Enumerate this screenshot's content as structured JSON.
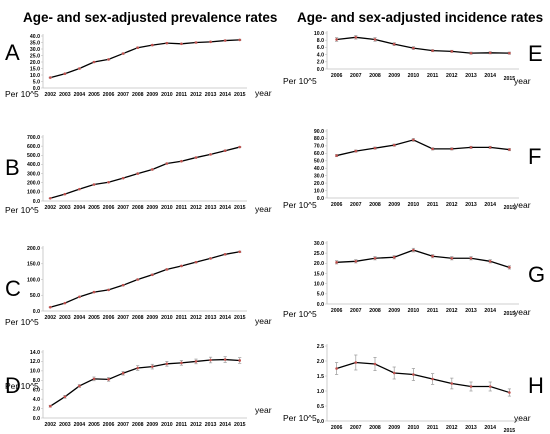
{
  "titles": {
    "left": "Age- and sex-adjusted prevalence rates",
    "right": "Age- and sex-adjusted incidence rates"
  },
  "unit_label": "Per 10^5",
  "x_axis_label": "year",
  "colors": {
    "line": "#000000",
    "marker": "#c0504d",
    "error": "#999999",
    "axis": "#bfbfbf"
  },
  "chart_data": [
    {
      "panel": "A",
      "type": "line",
      "x": [
        "2002",
        "2003",
        "2004",
        "2005",
        "2006",
        "2007",
        "2008",
        "2009",
        "2010",
        "2011",
        "2012",
        "2013",
        "2014",
        "2015"
      ],
      "values": [
        8.0,
        11.0,
        15.0,
        20.0,
        22.0,
        26.5,
        31.0,
        33.0,
        34.5,
        34.0,
        35.0,
        35.5,
        36.5,
        37.0
      ],
      "err": [
        0.3,
        0.3,
        0.4,
        0.4,
        0.4,
        0.5,
        0.5,
        0.5,
        0.5,
        0.5,
        0.5,
        0.5,
        0.5,
        0.5
      ],
      "ylim": [
        0,
        40
      ],
      "yticks": [
        "0.0",
        "5.0",
        "10.0",
        "15.0",
        "20.0",
        "25.0",
        "30.0",
        "35.0",
        "40.0"
      ],
      "ytick_values": [
        0,
        5,
        10,
        15,
        20,
        25,
        30,
        35,
        40
      ]
    },
    {
      "panel": "B",
      "type": "line",
      "x": [
        "2002",
        "2003",
        "2004",
        "2005",
        "2006",
        "2007",
        "2008",
        "2009",
        "2010",
        "2011",
        "2012",
        "2013",
        "2014",
        "2015"
      ],
      "values": [
        30,
        75,
        130,
        180,
        205,
        250,
        300,
        345,
        410,
        435,
        475,
        510,
        550,
        590
      ],
      "err": [
        2,
        3,
        3,
        4,
        4,
        4,
        5,
        5,
        5,
        5,
        5,
        5,
        6,
        6
      ],
      "ylim": [
        0,
        700
      ],
      "yticks": [
        "0.0",
        "100.0",
        "200.0",
        "300.0",
        "400.0",
        "500.0",
        "600.0",
        "700.0"
      ],
      "ytick_values": [
        0,
        100,
        200,
        300,
        400,
        500,
        600,
        700
      ]
    },
    {
      "panel": "C",
      "type": "line",
      "x": [
        "2002",
        "2003",
        "2004",
        "2005",
        "2006",
        "2007",
        "2008",
        "2009",
        "2010",
        "2011",
        "2012",
        "2013",
        "2014",
        "2015"
      ],
      "values": [
        12,
        25,
        45,
        60,
        67,
        82,
        100,
        115,
        132,
        143,
        155,
        167,
        180,
        188
      ],
      "err": [
        1,
        1,
        1.5,
        1.5,
        2,
        2,
        2,
        2,
        2,
        2,
        2,
        2,
        2,
        2
      ],
      "ylim": [
        0,
        200
      ],
      "yticks": [
        "0.0",
        "50.0",
        "100.0",
        "150.0",
        "200.0"
      ],
      "ytick_values": [
        0,
        50,
        100,
        150,
        200
      ]
    },
    {
      "panel": "D",
      "type": "line",
      "x": [
        "2002",
        "2003",
        "2004",
        "2005",
        "2006",
        "2007",
        "2008",
        "2009",
        "2010",
        "2011",
        "2012",
        "2013",
        "2014",
        "2015"
      ],
      "values": [
        2.5,
        4.5,
        6.8,
        8.3,
        8.2,
        9.5,
        10.6,
        10.9,
        11.5,
        11.7,
        12.0,
        12.3,
        12.4,
        12.2
      ],
      "err": [
        0.2,
        0.3,
        0.3,
        0.4,
        0.4,
        0.4,
        0.5,
        0.5,
        0.5,
        0.5,
        0.5,
        0.6,
        0.6,
        0.6
      ],
      "ylim": [
        0,
        14
      ],
      "yticks": [
        "0.0",
        "2.0",
        "4.0",
        "6.0",
        "8.0",
        "10.0",
        "12.0",
        "14.0"
      ],
      "ytick_values": [
        0,
        2,
        4,
        6,
        8,
        10,
        12,
        14
      ]
    },
    {
      "panel": "E",
      "type": "line",
      "x": [
        "2006",
        "2007",
        "2008",
        "2009",
        "2010",
        "2011",
        "2012",
        "2013",
        "2014",
        "2015"
      ],
      "values": [
        8.2,
        8.8,
        8.2,
        6.9,
        5.8,
        5.1,
        4.9,
        4.4,
        4.5,
        4.4
      ],
      "err": [
        0.5,
        0.5,
        0.5,
        0.4,
        0.4,
        0.3,
        0.3,
        0.3,
        0.3,
        0.3
      ],
      "ylim": [
        0,
        10
      ],
      "yticks": [
        "0.0",
        "2.0",
        "4.0",
        "6.0",
        "8.0",
        "10.0"
      ],
      "ytick_values": [
        0,
        2,
        4,
        6,
        8,
        10
      ]
    },
    {
      "panel": "F",
      "type": "line",
      "x": [
        "2006",
        "2007",
        "2008",
        "2009",
        "2010",
        "2011",
        "2012",
        "2013",
        "2014",
        "2015"
      ],
      "values": [
        57,
        63,
        67,
        71,
        78,
        66,
        66,
        68,
        68,
        65
      ],
      "err": [
        1.5,
        1.5,
        1.5,
        1.5,
        2,
        1.5,
        1.5,
        1.5,
        1.5,
        1.5
      ],
      "ylim": [
        0,
        90
      ],
      "yticks": [
        "0.0",
        "10.0",
        "20.0",
        "30.0",
        "40.0",
        "50.0",
        "60.0",
        "70.0",
        "80.0",
        "90.0"
      ],
      "ytick_values": [
        0,
        10,
        20,
        30,
        40,
        50,
        60,
        70,
        80,
        90
      ]
    },
    {
      "panel": "G",
      "type": "line",
      "x": [
        "2006",
        "2007",
        "2008",
        "2009",
        "2010",
        "2011",
        "2012",
        "2013",
        "2014",
        "2015"
      ],
      "values": [
        20.5,
        21.0,
        22.5,
        23.0,
        26.5,
        23.5,
        22.5,
        22.5,
        21.0,
        18.0
      ],
      "err": [
        0.8,
        0.8,
        0.8,
        0.8,
        0.9,
        0.8,
        0.8,
        0.8,
        0.8,
        0.8
      ],
      "ylim": [
        0,
        30
      ],
      "yticks": [
        "0.0",
        "5.0",
        "10.0",
        "15.0",
        "20.0",
        "25.0",
        "30.0"
      ],
      "ytick_values": [
        0,
        5,
        10,
        15,
        20,
        25,
        30
      ]
    },
    {
      "panel": "H",
      "type": "line",
      "x": [
        "2006",
        "2007",
        "2008",
        "2009",
        "2010",
        "2011",
        "2012",
        "2013",
        "2014",
        "2015"
      ],
      "values": [
        1.75,
        1.95,
        1.9,
        1.6,
        1.55,
        1.4,
        1.25,
        1.15,
        1.15,
        0.95
      ],
      "err": [
        0.2,
        0.25,
        0.22,
        0.2,
        0.2,
        0.18,
        0.18,
        0.15,
        0.15,
        0.12
      ],
      "ylim": [
        0,
        2.5
      ],
      "yticks": [
        "0.0",
        "0.5",
        "1.0",
        "1.5",
        "2.0",
        "2.5"
      ],
      "ytick_values": [
        0,
        0.5,
        1.0,
        1.5,
        2.0,
        2.5
      ]
    }
  ]
}
